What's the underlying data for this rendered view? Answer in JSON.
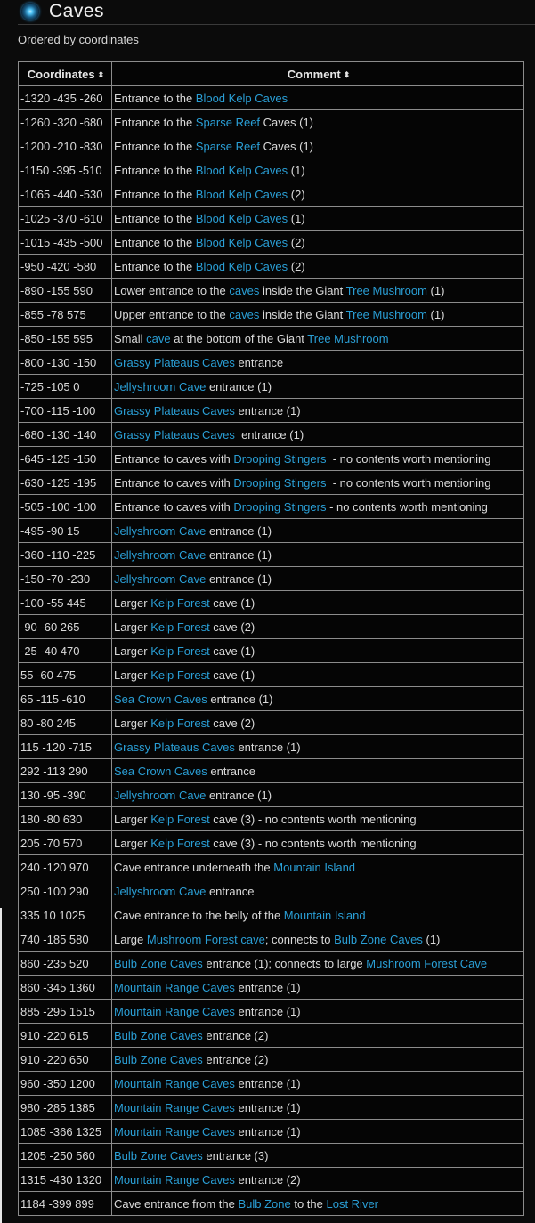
{
  "page": {
    "title": "Caves",
    "subtitle": "Ordered by coordinates",
    "icon": "blue-orb-icon",
    "link_color": "#2a9fd6"
  },
  "table": {
    "headers": [
      {
        "label": "Coordinates",
        "sort_icon": "sort-icon"
      },
      {
        "label": "Comment",
        "sort_icon": "sort-icon"
      }
    ],
    "sort_glyph": "⬍",
    "rows": [
      {
        "coords": "-1320 -435 -260",
        "comment": [
          {
            "text": "Entrance to the "
          },
          {
            "text": "Blood Kelp Caves",
            "link": true
          }
        ]
      },
      {
        "coords": "-1260 -320 -680",
        "comment": [
          {
            "text": "Entrance to the "
          },
          {
            "text": "Sparse Reef",
            "link": true
          },
          {
            "text": " Caves (1)"
          }
        ]
      },
      {
        "coords": "-1200 -210 -830",
        "comment": [
          {
            "text": "Entrance to the "
          },
          {
            "text": "Sparse Reef",
            "link": true
          },
          {
            "text": " Caves (1)"
          }
        ]
      },
      {
        "coords": "-1150 -395 -510",
        "comment": [
          {
            "text": "Entrance to the "
          },
          {
            "text": "Blood Kelp Caves",
            "link": true
          },
          {
            "text": " (1)"
          }
        ]
      },
      {
        "coords": "-1065 -440 -530",
        "comment": [
          {
            "text": "Entrance to the "
          },
          {
            "text": "Blood Kelp Caves",
            "link": true
          },
          {
            "text": " (2)"
          }
        ]
      },
      {
        "coords": "-1025 -370 -610",
        "comment": [
          {
            "text": "Entrance to the "
          },
          {
            "text": "Blood Kelp Caves",
            "link": true
          },
          {
            "text": " (1)"
          }
        ]
      },
      {
        "coords": "-1015 -435 -500",
        "comment": [
          {
            "text": "Entrance to the "
          },
          {
            "text": "Blood Kelp Caves",
            "link": true
          },
          {
            "text": " (2)"
          }
        ]
      },
      {
        "coords": "-950 -420 -580",
        "comment": [
          {
            "text": "Entrance to the "
          },
          {
            "text": "Blood Kelp Caves",
            "link": true
          },
          {
            "text": " (2)"
          }
        ]
      },
      {
        "coords": "-890 -155 590",
        "comment": [
          {
            "text": "Lower entrance to the "
          },
          {
            "text": "caves",
            "link": true
          },
          {
            "text": " inside the Giant "
          },
          {
            "text": "Tree Mushroom",
            "link": true
          },
          {
            "text": " (1)"
          }
        ]
      },
      {
        "coords": "-855 -78 575",
        "comment": [
          {
            "text": "Upper entrance to the "
          },
          {
            "text": "caves",
            "link": true
          },
          {
            "text": " inside the Giant "
          },
          {
            "text": "Tree Mushroom",
            "link": true
          },
          {
            "text": " (1)"
          }
        ]
      },
      {
        "coords": "-850 -155 595",
        "comment": [
          {
            "text": "Small "
          },
          {
            "text": "cave",
            "link": true
          },
          {
            "text": " at the bottom of the Giant "
          },
          {
            "text": "Tree Mushroom",
            "link": true
          }
        ]
      },
      {
        "coords": "-800 -130 -150",
        "comment": [
          {
            "text": "Grassy Plateaus Caves",
            "link": true
          },
          {
            "text": " entrance"
          }
        ]
      },
      {
        "coords": "-725 -105 0",
        "comment": [
          {
            "text": "Jellyshroom Cave",
            "link": true
          },
          {
            "text": " entrance (1)"
          }
        ]
      },
      {
        "coords": "-700 -115 -100",
        "comment": [
          {
            "text": "Grassy Plateaus Caves",
            "link": true
          },
          {
            "text": " entrance (1)"
          }
        ]
      },
      {
        "coords": "-680 -130 -140",
        "comment": [
          {
            "text": "Grassy Plateaus Caves ",
            "link": true
          },
          {
            "text": " entrance (1)"
          }
        ]
      },
      {
        "coords": "-645 -125 -150",
        "comment": [
          {
            "text": "Entrance to caves with "
          },
          {
            "text": "Drooping Stingers",
            "link": true
          },
          {
            "text": "  - no contents worth mentioning"
          }
        ]
      },
      {
        "coords": "-630 -125 -195",
        "comment": [
          {
            "text": "Entrance to caves with "
          },
          {
            "text": "Drooping Stingers",
            "link": true
          },
          {
            "text": "  - no contents worth mentioning"
          }
        ]
      },
      {
        "coords": "-505 -100 -100",
        "comment": [
          {
            "text": "Entrance to caves with "
          },
          {
            "text": "Drooping Stingers",
            "link": true
          },
          {
            "text": " - no contents worth mentioning"
          }
        ]
      },
      {
        "coords": "-495 -90 15",
        "comment": [
          {
            "text": "Jellyshroom Cave",
            "link": true
          },
          {
            "text": " entrance (1)"
          }
        ]
      },
      {
        "coords": "-360 -110 -225",
        "comment": [
          {
            "text": "Jellyshroom Cave",
            "link": true
          },
          {
            "text": " entrance (1)"
          }
        ]
      },
      {
        "coords": "-150 -70 -230",
        "comment": [
          {
            "text": "Jellyshroom Cave",
            "link": true
          },
          {
            "text": " entrance (1)"
          }
        ]
      },
      {
        "coords": "-100 -55 445",
        "comment": [
          {
            "text": "Larger "
          },
          {
            "text": "Kelp Forest",
            "link": true
          },
          {
            "text": " cave (1)"
          }
        ]
      },
      {
        "coords": "-90 -60 265",
        "comment": [
          {
            "text": "Larger "
          },
          {
            "text": "Kelp Forest",
            "link": true
          },
          {
            "text": " cave (2)"
          }
        ]
      },
      {
        "coords": "-25 -40 470",
        "comment": [
          {
            "text": "Larger "
          },
          {
            "text": "Kelp Forest",
            "link": true
          },
          {
            "text": " cave (1)"
          }
        ]
      },
      {
        "coords": "55 -60 475",
        "comment": [
          {
            "text": "Larger "
          },
          {
            "text": "Kelp Forest",
            "link": true
          },
          {
            "text": " cave (1)"
          }
        ]
      },
      {
        "coords": "65 -115 -610",
        "comment": [
          {
            "text": "Sea Crown Caves",
            "link": true
          },
          {
            "text": " entrance (1)"
          }
        ]
      },
      {
        "coords": "80 -80 245",
        "comment": [
          {
            "text": "Larger "
          },
          {
            "text": "Kelp Forest",
            "link": true
          },
          {
            "text": " cave (2)"
          }
        ]
      },
      {
        "coords": "115 -120 -715",
        "comment": [
          {
            "text": "Grassy Plateaus Caves",
            "link": true
          },
          {
            "text": " entrance (1)"
          }
        ]
      },
      {
        "coords": "292 -113 290",
        "comment": [
          {
            "text": "Sea Crown Caves",
            "link": true
          },
          {
            "text": " entrance"
          }
        ]
      },
      {
        "coords": "130 -95 -390",
        "comment": [
          {
            "text": "Jellyshroom Cave",
            "link": true
          },
          {
            "text": " entrance (1)"
          }
        ]
      },
      {
        "coords": "180 -80 630",
        "comment": [
          {
            "text": "Larger "
          },
          {
            "text": "Kelp Forest",
            "link": true
          },
          {
            "text": " cave (3) - no contents worth mentioning"
          }
        ]
      },
      {
        "coords": "205 -70 570",
        "comment": [
          {
            "text": "Larger "
          },
          {
            "text": "Kelp Forest",
            "link": true
          },
          {
            "text": " cave (3) - no contents worth mentioning"
          }
        ]
      },
      {
        "coords": "240 -120 970",
        "comment": [
          {
            "text": "Cave entrance underneath the "
          },
          {
            "text": "Mountain Island",
            "link": true
          }
        ]
      },
      {
        "coords": "250 -100 290",
        "comment": [
          {
            "text": "Jellyshroom Cave",
            "link": true
          },
          {
            "text": " entrance"
          }
        ]
      },
      {
        "coords": "335 10 1025",
        "comment": [
          {
            "text": "Cave entrance to the belly of the "
          },
          {
            "text": "Mountain Island",
            "link": true
          }
        ]
      },
      {
        "coords": "740 -185 580",
        "comment": [
          {
            "text": "Large "
          },
          {
            "text": "Mushroom Forest cave",
            "link": true
          },
          {
            "text": "; connects to "
          },
          {
            "text": "Bulb Zone Caves",
            "link": true
          },
          {
            "text": " (1)"
          }
        ]
      },
      {
        "coords": "860 -235 520",
        "comment": [
          {
            "text": "Bulb Zone Caves",
            "link": true
          },
          {
            "text": " entrance (1); connects to large "
          },
          {
            "text": "Mushroom Forest Cave",
            "link": true
          }
        ]
      },
      {
        "coords": "860 -345 1360",
        "comment": [
          {
            "text": "Mountain Range Caves",
            "link": true
          },
          {
            "text": " entrance (1)"
          }
        ]
      },
      {
        "coords": "885 -295 1515",
        "comment": [
          {
            "text": "Mountain Range Caves",
            "link": true
          },
          {
            "text": " entrance (1)"
          }
        ]
      },
      {
        "coords": "910 -220 615",
        "comment": [
          {
            "text": "Bulb Zone Caves",
            "link": true
          },
          {
            "text": " entrance (2)"
          }
        ]
      },
      {
        "coords": "910 -220 650",
        "comment": [
          {
            "text": "Bulb Zone Caves",
            "link": true
          },
          {
            "text": " entrance (2)"
          }
        ]
      },
      {
        "coords": "960 -350 1200",
        "comment": [
          {
            "text": "Mountain Range Caves",
            "link": true
          },
          {
            "text": " entrance (1)"
          }
        ]
      },
      {
        "coords": "980 -285 1385",
        "comment": [
          {
            "text": "Mountain Range Caves",
            "link": true
          },
          {
            "text": " entrance (1)"
          }
        ]
      },
      {
        "coords": "1085 -366 1325",
        "comment": [
          {
            "text": "Mountain Range Caves",
            "link": true
          },
          {
            "text": " entrance (1)"
          }
        ]
      },
      {
        "coords": "1205 -250 560",
        "comment": [
          {
            "text": "Bulb Zone Caves",
            "link": true
          },
          {
            "text": " entrance (3)"
          }
        ]
      },
      {
        "coords": "1315 -430 1320",
        "comment": [
          {
            "text": "Mountain Range Caves",
            "link": true
          },
          {
            "text": " entrance (2)"
          }
        ]
      },
      {
        "coords": "1184 -399 899",
        "comment": [
          {
            "text": "Cave entrance from the "
          },
          {
            "text": "Bulb Zone",
            "link": true
          },
          {
            "text": " to the "
          },
          {
            "text": "Lost River",
            "link": true
          }
        ]
      }
    ]
  }
}
